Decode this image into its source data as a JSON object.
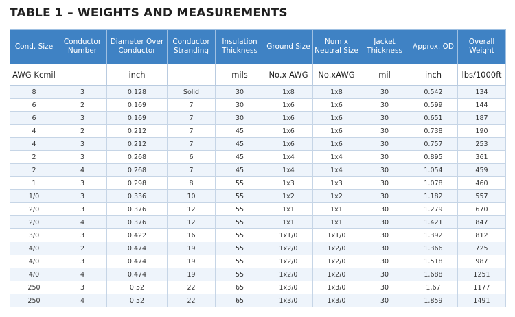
{
  "title": "TABLE 1 – WEIGHTS AND MEASUREMENTS",
  "table": {
    "headers": [
      "Cond. Size",
      "Conductor Number",
      "Diameter Over Conductor",
      "Conductor Stranding",
      "Insulation Thickness",
      "Ground Size",
      "Num x Neutral Size",
      "Jacket Thickness",
      "Approx. OD",
      "Overall Weight"
    ],
    "units": [
      "AWG Kcmil",
      null,
      "inch",
      null,
      "mils",
      "No.x AWG",
      "No.xAWG",
      "mil",
      "inch",
      "lbs/1000ft"
    ],
    "rows": [
      [
        "8",
        "3",
        "0.128",
        "Solid",
        "30",
        "1x8",
        "1x8",
        "30",
        "0.542",
        "134"
      ],
      [
        "6",
        "2",
        "0.169",
        "7",
        "30",
        "1x6",
        "1x6",
        "30",
        "0.599",
        "144"
      ],
      [
        "6",
        "3",
        "0.169",
        "7",
        "30",
        "1x6",
        "1x6",
        "30",
        "0.651",
        "187"
      ],
      [
        "4",
        "2",
        "0.212",
        "7",
        "45",
        "1x6",
        "1x6",
        "30",
        "0.738",
        "190"
      ],
      [
        "4",
        "3",
        "0.212",
        "7",
        "45",
        "1x6",
        "1x6",
        "30",
        "0.757",
        "253"
      ],
      [
        "2",
        "3",
        "0.268",
        "6",
        "45",
        "1x4",
        "1x4",
        "30",
        "0.895",
        "361"
      ],
      [
        "2",
        "4",
        "0.268",
        "7",
        "45",
        "1x4",
        "1x4",
        "30",
        "1.054",
        "459"
      ],
      [
        "1",
        "3",
        "0.298",
        "8",
        "55",
        "1x3",
        "1x3",
        "30",
        "1.078",
        "460"
      ],
      [
        "1/0",
        "3",
        "0.336",
        "10",
        "55",
        "1x2",
        "1x2",
        "30",
        "1.182",
        "557"
      ],
      [
        "2/0",
        "3",
        "0.376",
        "12",
        "55",
        "1x1",
        "1x1",
        "30",
        "1.279",
        "670"
      ],
      [
        "2/0",
        "4",
        "0.376",
        "12",
        "55",
        "1x1",
        "1x1",
        "30",
        "1.421",
        "847"
      ],
      [
        "3/0",
        "3",
        "0.422",
        "16",
        "55",
        "1x1/0",
        "1x1/0",
        "30",
        "1.392",
        "812"
      ],
      [
        "4/0",
        "2",
        "0.474",
        "19",
        "55",
        "1x2/0",
        "1x2/0",
        "30",
        "1.366",
        "725"
      ],
      [
        "4/0",
        "3",
        "0.474",
        "19",
        "55",
        "1x2/0",
        "1x2/0",
        "30",
        "1.518",
        "987"
      ],
      [
        "4/0",
        "4",
        "0.474",
        "19",
        "55",
        "1x2/0",
        "1x2/0",
        "30",
        "1.688",
        "1251"
      ],
      [
        "250",
        "3",
        "0.52",
        "22",
        "65",
        "1x3/0",
        "1x3/0",
        "30",
        "1.67",
        "1177"
      ],
      [
        "250",
        "4",
        "0.52",
        "22",
        "65",
        "1x3/0",
        "1x3/0",
        "30",
        "1.859",
        "1491"
      ]
    ]
  }
}
